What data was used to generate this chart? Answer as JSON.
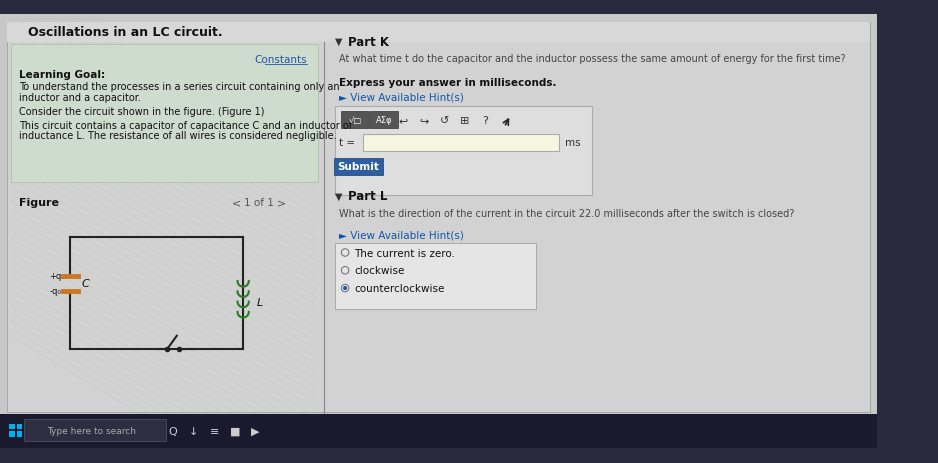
{
  "title": "Oscillations in an LC circuit.",
  "constants_link": "Constants",
  "learning_goal_title": "Learning Goal:",
  "learning_goal_line1": "To understand the processes in a series circuit containing only an",
  "learning_goal_line2": "inductor and a capacitor.",
  "consider_text": "Consider the circuit shown in the figure. (Figure 1)",
  "circuit_line1": "This circuit contains a capacitor of capacitance C and an inductor of",
  "circuit_line2": "inductance L. The resistance of all wires is considered negligible.",
  "figure_label": "Figure",
  "part_k_title": "Part K",
  "part_k_q1": "At what time t do the capacitor and the inductor possess the same amount of energy for the first time?",
  "part_k_bold": "Express your answer in milliseconds.",
  "hint_text": "► View Available Hint(s)",
  "t_label": "t =",
  "ms_label": "ms",
  "submit_label": "Submit",
  "part_l_title": "Part L",
  "part_l_q": "What is the direction of the current in the circuit 22.0 milliseconds after the switch is closed?",
  "option1": "The current is zero.",
  "option2": "clockwise",
  "option3": "counterclockwise",
  "submit_bg": "#2d5fa0",
  "submit_text_color": "#ffffff",
  "taskbar_search": "Type here to search"
}
